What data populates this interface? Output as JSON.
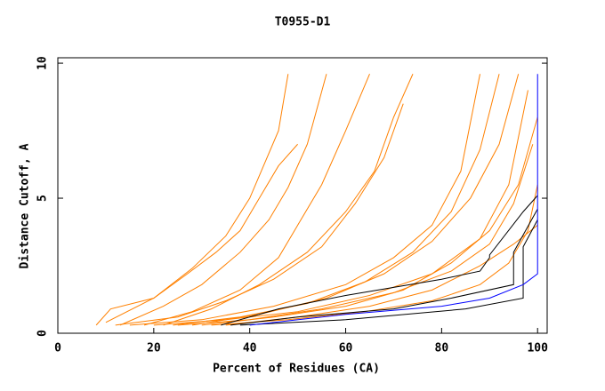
{
  "chart_data": {
    "type": "line",
    "title": "T0955-D1",
    "x_label": "Percent of Residues (CA)",
    "y_label": "Distance Cutoff, A",
    "xlim": [
      0,
      102
    ],
    "ylim": [
      0,
      10.2
    ],
    "xticks": [
      0,
      20,
      40,
      60,
      80,
      100
    ],
    "yticks": [
      0,
      5,
      10
    ],
    "series": [
      {
        "color": "#ff8000",
        "x": [
          8,
          11,
          20,
          27,
          33,
          38,
          42,
          46,
          50
        ],
        "values": [
          0.3,
          0.9,
          1.3,
          2.2,
          3,
          3.8,
          5,
          6.2,
          7
        ]
      },
      {
        "color": "#ff8000",
        "x": [
          13,
          22,
          30,
          38,
          44,
          48,
          52,
          56
        ],
        "values": [
          0.3,
          1,
          1.8,
          3,
          4.2,
          5.4,
          7,
          9.6
        ]
      },
      {
        "color": "#ff8000",
        "x": [
          12,
          25,
          35,
          45,
          55,
          62,
          68,
          72
        ],
        "values": [
          0.3,
          0.6,
          1.2,
          2,
          3.2,
          4.8,
          6.5,
          8.5
        ]
      },
      {
        "color": "#ff8000",
        "x": [
          15,
          30,
          45,
          60,
          70,
          78,
          84,
          88
        ],
        "values": [
          0.3,
          0.5,
          1,
          1.8,
          2.8,
          4,
          6,
          9.6
        ]
      },
      {
        "color": "#ff8000",
        "x": [
          20,
          35,
          50,
          65,
          78,
          88,
          94,
          98
        ],
        "values": [
          0.3,
          0.5,
          0.8,
          1.4,
          2.2,
          3.5,
          5.5,
          9
        ]
      },
      {
        "color": "#ff8000",
        "x": [
          25,
          40,
          55,
          70,
          82,
          90,
          95,
          99
        ],
        "values": [
          0.3,
          0.5,
          0.9,
          1.5,
          2.3,
          3.3,
          4.8,
          7
        ]
      },
      {
        "color": "#ff8000",
        "x": [
          18,
          28,
          38,
          46,
          50,
          55,
          60,
          65
        ],
        "values": [
          0.3,
          0.8,
          1.6,
          2.8,
          4,
          5.5,
          7.5,
          9.6
        ]
      },
      {
        "color": "#ff8000",
        "x": [
          30,
          45,
          60,
          72,
          82,
          90,
          96,
          100
        ],
        "values": [
          0.3,
          0.6,
          1,
          1.6,
          2.6,
          3.8,
          5.5,
          8
        ]
      },
      {
        "color": "#ff8000",
        "x": [
          22,
          32,
          42,
          52,
          60,
          66,
          70,
          74
        ],
        "values": [
          0.3,
          0.9,
          1.8,
          3,
          4.5,
          6,
          8,
          9.6
        ]
      },
      {
        "color": "#ff8000",
        "x": [
          28,
          42,
          56,
          68,
          78,
          86,
          92,
          96
        ],
        "values": [
          0.3,
          0.7,
          1.3,
          2.2,
          3.4,
          5,
          7,
          9.6
        ]
      },
      {
        "color": "#ff8000",
        "x": [
          10,
          20,
          28,
          35,
          40,
          46,
          48
        ],
        "values": [
          0.4,
          1.3,
          2.4,
          3.6,
          5,
          7.5,
          9.6
        ]
      },
      {
        "color": "#ff8000",
        "x": [
          35,
          50,
          65,
          78,
          88,
          95,
          100
        ],
        "values": [
          0.3,
          0.6,
          1,
          1.6,
          2.5,
          3.3,
          4
        ]
      },
      {
        "color": "#ff8000",
        "x": [
          24,
          38,
          52,
          64,
          74,
          82,
          88,
          92
        ],
        "values": [
          0.3,
          0.6,
          1.1,
          1.9,
          3,
          4.5,
          6.8,
          9.6
        ]
      },
      {
        "color": "#ff8000",
        "x": [
          32,
          48,
          64,
          78,
          88,
          94,
          98,
          100
        ],
        "values": [
          0.3,
          0.5,
          0.8,
          1.2,
          1.8,
          2.6,
          3.8,
          5.5
        ]
      },
      {
        "color": "#000000",
        "x": [
          34,
          46,
          60,
          80,
          88,
          90,
          90,
          97,
          100
        ],
        "values": [
          0.3,
          0.9,
          1.4,
          2,
          2.3,
          2.8,
          2.9,
          4.5,
          5.1
        ]
      },
      {
        "color": "#000000",
        "x": [
          36,
          50,
          70,
          82,
          95,
          95,
          100
        ],
        "values": [
          0.3,
          0.6,
          0.9,
          1.3,
          1.8,
          3,
          4.6
        ]
      },
      {
        "color": "#000000",
        "x": [
          38,
          60,
          85,
          97,
          97,
          100
        ],
        "values": [
          0.3,
          0.5,
          0.9,
          1.3,
          3.2,
          4.2
        ]
      },
      {
        "color": "#0000ff",
        "x": [
          40,
          60,
          80,
          90,
          97,
          100,
          100
        ],
        "values": [
          0.3,
          0.7,
          1,
          1.3,
          1.8,
          2.2,
          9.6
        ]
      }
    ]
  }
}
